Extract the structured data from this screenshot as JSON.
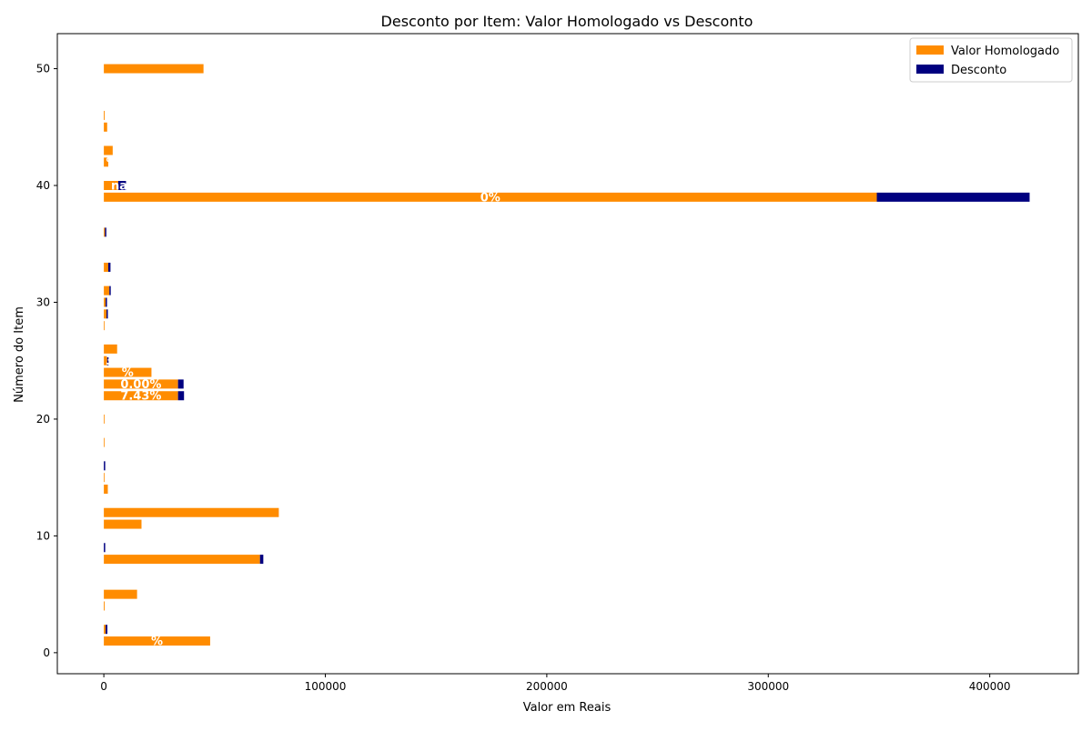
{
  "colors": {
    "homologado": "#ff8c00",
    "desconto": "#000080",
    "axis": "#000000",
    "background": "#ffffff"
  },
  "chart_data": {
    "type": "bar",
    "orientation": "horizontal",
    "stacked": true,
    "title": "Desconto por Item: Valor Homologado vs Desconto",
    "xlabel": "Valor em Reais",
    "ylabel": "Número do Item",
    "xlim": [
      -21000,
      440000
    ],
    "ylim": [
      -1.8,
      53.0
    ],
    "xticks": [
      0,
      100000,
      200000,
      300000,
      400000
    ],
    "xtick_labels": [
      "0",
      "100000",
      "200000",
      "300000",
      "400000"
    ],
    "yticks": [
      0,
      10,
      20,
      30,
      40,
      50
    ],
    "ytick_labels": [
      "0",
      "10",
      "20",
      "30",
      "40",
      "50"
    ],
    "grid": false,
    "legend_position": "upper right",
    "series": [
      {
        "name": "Valor Homologado",
        "points": [
          {
            "item": 1,
            "value": 48000
          },
          {
            "item": 2,
            "value": 800
          },
          {
            "item": 4,
            "value": 400
          },
          {
            "item": 5,
            "value": 15000
          },
          {
            "item": 8,
            "value": 70500
          },
          {
            "item": 11,
            "value": 17000
          },
          {
            "item": 12,
            "value": 79000
          },
          {
            "item": 14,
            "value": 1800
          },
          {
            "item": 15,
            "value": 300
          },
          {
            "item": 18,
            "value": 300
          },
          {
            "item": 20,
            "value": 300
          },
          {
            "item": 22,
            "value": 33500
          },
          {
            "item": 23,
            "value": 33500
          },
          {
            "item": 24,
            "value": 21500
          },
          {
            "item": 25,
            "value": 1500
          },
          {
            "item": 26,
            "value": 6000
          },
          {
            "item": 28,
            "value": 200
          },
          {
            "item": 29,
            "value": 1200
          },
          {
            "item": 30,
            "value": 800
          },
          {
            "item": 31,
            "value": 2500
          },
          {
            "item": 33,
            "value": 2000
          },
          {
            "item": 36,
            "value": 500
          },
          {
            "item": 39,
            "value": 349000
          },
          {
            "item": 40,
            "value": 6500
          },
          {
            "item": 42,
            "value": 2000
          },
          {
            "item": 43,
            "value": 4000
          },
          {
            "item": 45,
            "value": 1500
          },
          {
            "item": 46,
            "value": 400
          },
          {
            "item": 50,
            "value": 45000
          }
        ]
      },
      {
        "name": "Desconto",
        "points": [
          {
            "item": 1,
            "value": 0
          },
          {
            "item": 2,
            "value": 800
          },
          {
            "item": 4,
            "value": 0
          },
          {
            "item": 5,
            "value": 0
          },
          {
            "item": 8,
            "value": 1500
          },
          {
            "item": 9,
            "value": 400
          },
          {
            "item": 11,
            "value": 0
          },
          {
            "item": 12,
            "value": 0
          },
          {
            "item": 14,
            "value": 0
          },
          {
            "item": 16,
            "value": 600
          },
          {
            "item": 22,
            "value": 2700
          },
          {
            "item": 23,
            "value": 2500
          },
          {
            "item": 25,
            "value": 200
          },
          {
            "item": 29,
            "value": 400
          },
          {
            "item": 30,
            "value": 300
          },
          {
            "item": 31,
            "value": 400
          },
          {
            "item": 33,
            "value": 1000
          },
          {
            "item": 36,
            "value": 400
          },
          {
            "item": 39,
            "value": 69000
          },
          {
            "item": 40,
            "value": 3500
          }
        ]
      }
    ],
    "bar_labels": [
      {
        "item": 1,
        "text": "%"
      },
      {
        "item": 22,
        "text": "7.43%"
      },
      {
        "item": 23,
        "text": "0.00%"
      },
      {
        "item": 24,
        "text": "%"
      },
      {
        "item": 25,
        "text": "3"
      },
      {
        "item": 39,
        "text": "0%"
      },
      {
        "item": 40,
        "text": "na"
      },
      {
        "item": 42,
        "text": "%"
      }
    ]
  }
}
